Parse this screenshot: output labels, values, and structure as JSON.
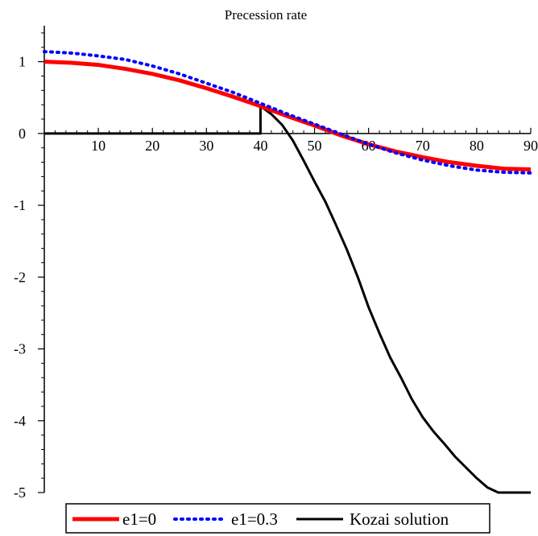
{
  "chart_data": {
    "type": "line",
    "title": "Precession rate",
    "xlabel": "",
    "ylabel": "",
    "xlim": [
      0,
      90
    ],
    "ylim": [
      -5,
      1.5
    ],
    "x_ticks": [
      10,
      20,
      30,
      40,
      50,
      60,
      70,
      80,
      90
    ],
    "x_tick_labels": [
      "10",
      "20",
      "30",
      "40",
      "50",
      "60",
      "70",
      "80",
      "90"
    ],
    "y_ticks": [
      1,
      0,
      -1,
      -2,
      -3,
      -4,
      -5
    ],
    "y_tick_labels": [
      "1",
      "0",
      "-1",
      "-2",
      "-3",
      "-4",
      "-5"
    ],
    "grid": false,
    "legend_position": "bottom",
    "series": [
      {
        "name": "e1=0",
        "color": "#ff0000",
        "style": "solid",
        "x": [
          0,
          5,
          10,
          15,
          20,
          25,
          30,
          35,
          40,
          45,
          50,
          55,
          60,
          65,
          70,
          75,
          80,
          85,
          90
        ],
        "y": [
          1.0,
          0.985,
          0.955,
          0.9,
          0.83,
          0.74,
          0.63,
          0.51,
          0.38,
          0.24,
          0.11,
          -0.03,
          -0.15,
          -0.25,
          -0.33,
          -0.4,
          -0.45,
          -0.49,
          -0.5
        ]
      },
      {
        "name": "e1=0.3",
        "color": "#0000ff",
        "style": "dotted",
        "x": [
          0,
          5,
          10,
          15,
          20,
          25,
          30,
          35,
          40,
          45,
          50,
          55,
          60,
          65,
          70,
          75,
          80,
          85,
          90
        ],
        "y": [
          1.14,
          1.12,
          1.08,
          1.03,
          0.94,
          0.83,
          0.7,
          0.57,
          0.42,
          0.27,
          0.13,
          -0.01,
          -0.15,
          -0.27,
          -0.37,
          -0.45,
          -0.51,
          -0.54,
          -0.55
        ]
      },
      {
        "name": "Kozai solution",
        "color": "#000000",
        "style": "solid",
        "x": [
          0,
          40,
          40,
          42,
          44,
          46,
          48,
          50,
          52,
          54,
          56,
          58,
          60,
          62,
          64,
          66,
          68,
          70,
          72,
          74,
          76,
          78,
          80,
          82,
          84,
          86,
          88,
          90
        ],
        "y": [
          0,
          0,
          0.38,
          0.27,
          0.12,
          -0.1,
          -0.38,
          -0.67,
          -0.95,
          -1.28,
          -1.62,
          -2.0,
          -2.42,
          -2.78,
          -3.12,
          -3.4,
          -3.7,
          -3.95,
          -4.15,
          -4.32,
          -4.5,
          -4.65,
          -4.8,
          -4.93,
          -5.0,
          -5.0,
          -5.0,
          -5.0
        ]
      }
    ]
  }
}
